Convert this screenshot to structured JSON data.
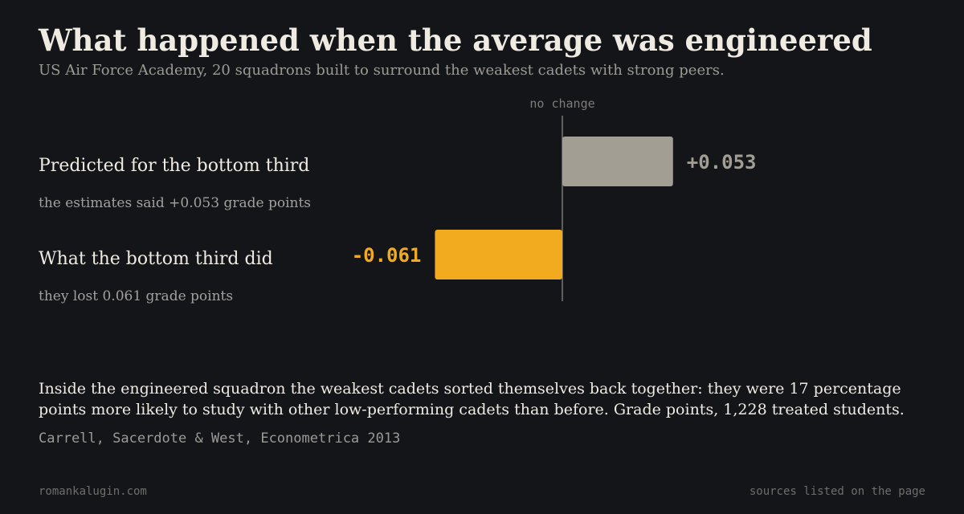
{
  "header": {
    "title": "What happened when the average was engineered",
    "subtitle": "US Air Force Academy, 20 squadrons built to surround the weakest cadets with strong peers."
  },
  "chart_data": {
    "type": "bar",
    "orientation": "horizontal",
    "baseline_label": "no change",
    "baseline_value": 0,
    "xlim": [
      -0.09,
      0.09
    ],
    "rows": [
      {
        "label": "Predicted for the bottom third",
        "sublabel": "the estimates said +0.053 grade points",
        "value": 0.053,
        "value_label": "+0.053",
        "color": "#a29e94",
        "label_color": "#a29e94"
      },
      {
        "label": "What the bottom third did",
        "sublabel": "they lost 0.061 grade points",
        "value": -0.061,
        "value_label": "-0.061",
        "color": "#f2aa1f",
        "label_color": "#f2aa1f"
      }
    ]
  },
  "note": {
    "text": "Inside the engineered squadron the weakest cadets sorted themselves back together: they were 17 percentage points more likely to study with other low-performing cadets than before. Grade points, 1,228 treated students.",
    "source": "Carrell, Sacerdote & West, Econometrica 2013"
  },
  "footer": {
    "site": "romankalugin.com",
    "sources": "sources listed on the page"
  }
}
